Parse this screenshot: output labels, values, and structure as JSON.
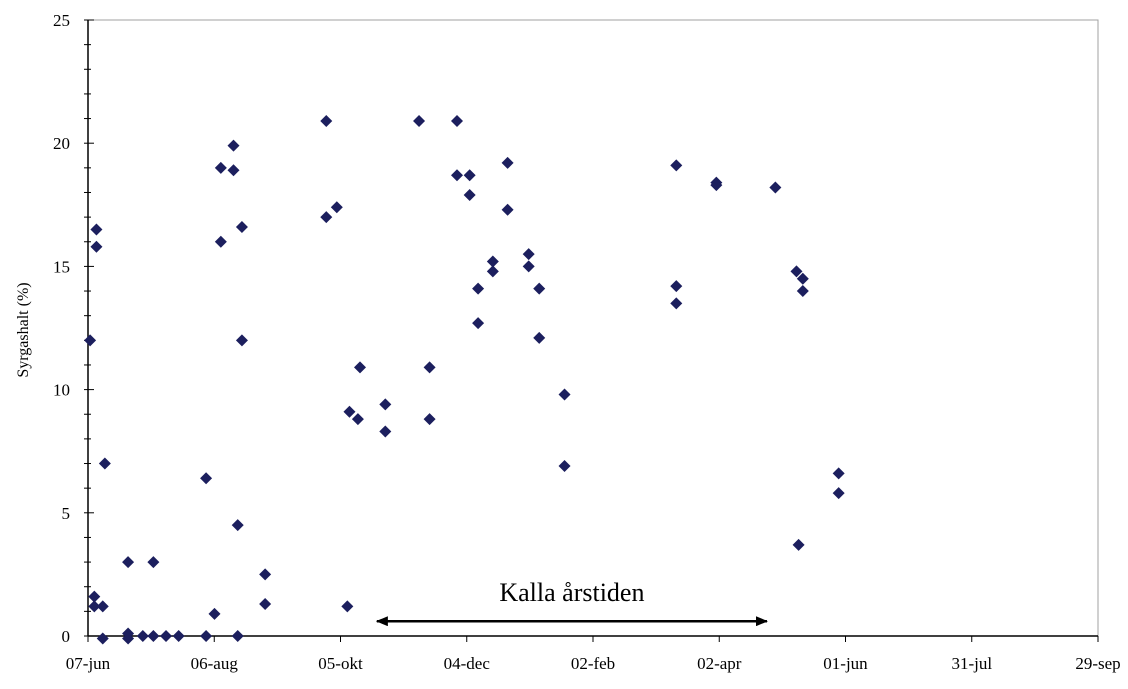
{
  "chart_data": {
    "type": "scatter",
    "title": "",
    "xlabel": "",
    "ylabel": "Syrgashalt (%)",
    "xlim": [
      "07-jun",
      "29-sep"
    ],
    "ylim": [
      0,
      25
    ],
    "y_ticks": [
      "0",
      "5",
      "10",
      "15",
      "20",
      "25"
    ],
    "x_ticks": [
      "07-jun",
      "06-aug",
      "05-okt",
      "04-dec",
      "02-feb",
      "02-apr",
      "01-jun",
      "31-jul",
      "29-sep"
    ],
    "grid": false,
    "marker_color": "#1c1f5e",
    "annotation": {
      "text": "Kalla årstiden",
      "from": "22-okt",
      "to": "25-apr"
    },
    "points": [
      {
        "x": "15-jun",
        "y": 7.0
      },
      {
        "x": "03-jul",
        "y": 0
      },
      {
        "x": "08-jul",
        "y": 0
      },
      {
        "x": "08-jul",
        "y": 3.0
      },
      {
        "x": "14-jul",
        "y": 0
      },
      {
        "x": "20-jul",
        "y": 0
      },
      {
        "x": "02-aug",
        "y": 0
      },
      {
        "x": "02-aug",
        "y": 6.4
      },
      {
        "x": "06-aug",
        "y": 0.9
      },
      {
        "x": "09-aug",
        "y": 16.0
      },
      {
        "x": "09-aug",
        "y": 19.0
      },
      {
        "x": "15-aug",
        "y": 19.9
      },
      {
        "x": "15-aug",
        "y": 18.9
      },
      {
        "x": "17-aug",
        "y": 4.5
      },
      {
        "x": "17-aug",
        "y": 0
      },
      {
        "x": "19-aug",
        "y": 12.0
      },
      {
        "x": "19-aug",
        "y": 16.6
      },
      {
        "x": "30-aug",
        "y": 2.5
      },
      {
        "x": "30-aug",
        "y": 1.3
      },
      {
        "x": "28-sep",
        "y": 20.9
      },
      {
        "x": "28-sep",
        "y": 17.0
      },
      {
        "x": "03-okt",
        "y": 17.4
      },
      {
        "x": "08-okt",
        "y": 1.2
      },
      {
        "x": "09-okt",
        "y": 9.1
      },
      {
        "x": "13-okt",
        "y": 8.8
      },
      {
        "x": "14-okt",
        "y": 10.9
      },
      {
        "x": "26-okt",
        "y": 9.4
      },
      {
        "x": "26-okt",
        "y": 8.3
      },
      {
        "x": "11-nov",
        "y": 20.9
      },
      {
        "x": "16-nov",
        "y": 10.9
      },
      {
        "x": "16-nov",
        "y": 8.8
      },
      {
        "x": "29-nov",
        "y": 18.7
      },
      {
        "x": "29-nov",
        "y": 20.9
      },
      {
        "x": "05-dec",
        "y": 18.7
      },
      {
        "x": "05-dec",
        "y": 17.9
      },
      {
        "x": "09-dec",
        "y": 14.1
      },
      {
        "x": "09-dec",
        "y": 12.7
      },
      {
        "x": "16-dec",
        "y": 15.2
      },
      {
        "x": "16-dec",
        "y": 14.8
      },
      {
        "x": "23-dec",
        "y": 19.2
      },
      {
        "x": "23-dec",
        "y": 17.3
      },
      {
        "x": "02-jan",
        "y": 15.5
      },
      {
        "x": "02-jan",
        "y": 15.0
      },
      {
        "x": "07-jan",
        "y": 14.1
      },
      {
        "x": "07-jan",
        "y": 12.1
      },
      {
        "x": "19-jan",
        "y": 9.8
      },
      {
        "x": "19-jan",
        "y": 6.9
      },
      {
        "x": "13-mar",
        "y": 19.1
      },
      {
        "x": "13-mar",
        "y": 14.2
      },
      {
        "x": "13-mar",
        "y": 13.5
      },
      {
        "x": "01-apr",
        "y": 18.4
      },
      {
        "x": "01-apr",
        "y": 18.3
      },
      {
        "x": "29-apr",
        "y": 18.2
      },
      {
        "x": "09-maj",
        "y": 14.8
      },
      {
        "x": "12-maj",
        "y": 14.5
      },
      {
        "x": "12-maj",
        "y": 14.0
      },
      {
        "x": "10-maj",
        "y": 3.7
      },
      {
        "x": "29-maj",
        "y": 6.6
      },
      {
        "x": "29-maj",
        "y": 5.8
      },
      {
        "x": "08-jun",
        "y": 12.0
      },
      {
        "x": "11-jun",
        "y": 16.5
      },
      {
        "x": "11-jun",
        "y": 15.8
      },
      {
        "x": "10-jun",
        "y": 1.6
      },
      {
        "x": "10-jun",
        "y": 1.2
      },
      {
        "x": "14-jun",
        "y": 1.2
      },
      {
        "x": "14-jun",
        "y": -0.1
      },
      {
        "x": "26-jun",
        "y": 3.0
      },
      {
        "x": "26-jun",
        "y": 0.1
      },
      {
        "x": "26-jun",
        "y": -0.1
      }
    ]
  }
}
